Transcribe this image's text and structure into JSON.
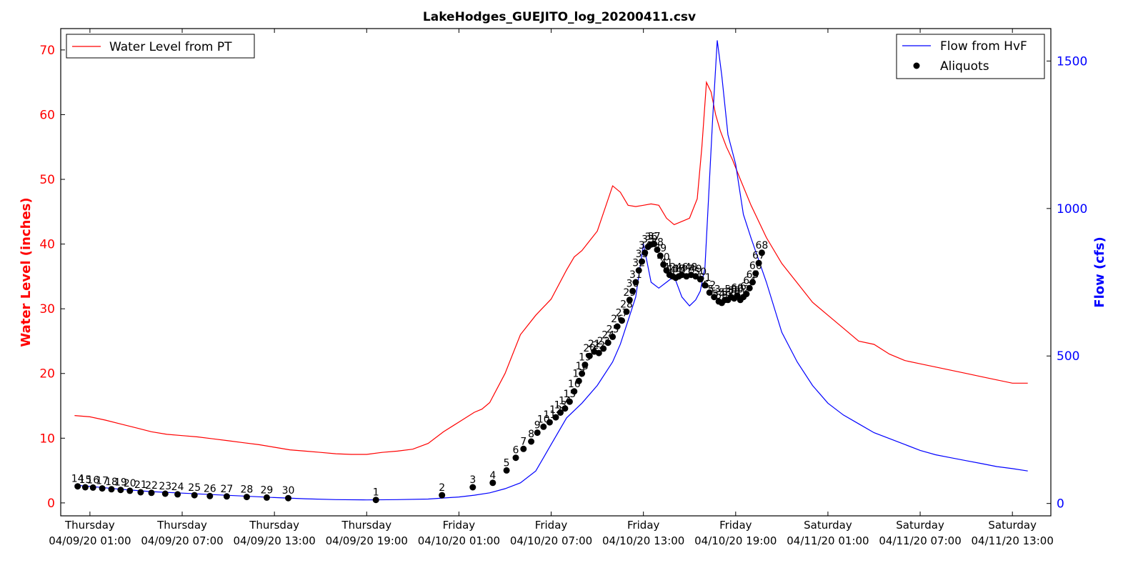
{
  "chart_data": {
    "type": "line",
    "title": "LakeHodges_GUEJITO_log_20200411.csv",
    "ylabel_left": "Water Level (inches)",
    "ylabel_right": "Flow (cfs)",
    "ylim_left": [
      -2,
      73.3
    ],
    "ylim_right": [
      -42,
      1610
    ],
    "yticks_left": [
      0,
      10,
      20,
      30,
      40,
      50,
      60,
      70
    ],
    "yticks_right": [
      0,
      500,
      1000,
      1500
    ],
    "xlim_hours": [
      -1.9,
      62.5
    ],
    "x_ticks": [
      {
        "hours": 0,
        "line1": "Thursday",
        "line2": "04/09/20 01:00"
      },
      {
        "hours": 6,
        "line1": "Thursday",
        "line2": "04/09/20 07:00"
      },
      {
        "hours": 12,
        "line1": "Thursday",
        "line2": "04/09/20 13:00"
      },
      {
        "hours": 18,
        "line1": "Thursday",
        "line2": "04/09/20 19:00"
      },
      {
        "hours": 24,
        "line1": "Friday",
        "line2": "04/10/20 01:00"
      },
      {
        "hours": 30,
        "line1": "Friday",
        "line2": "04/10/20 07:00"
      },
      {
        "hours": 36,
        "line1": "Friday",
        "line2": "04/10/20 13:00"
      },
      {
        "hours": 42,
        "line1": "Friday",
        "line2": "04/10/20 19:00"
      },
      {
        "hours": 48,
        "line1": "Saturday",
        "line2": "04/11/20 01:00"
      },
      {
        "hours": 54,
        "line1": "Saturday",
        "line2": "04/11/20 07:00"
      },
      {
        "hours": 60,
        "line1": "Saturday",
        "line2": "04/11/20 13:00"
      }
    ],
    "legend_left": {
      "position": "top-left",
      "entries": [
        {
          "name": "Water Level from PT",
          "color": "#ff0000"
        }
      ]
    },
    "legend_right": {
      "position": "top-right",
      "entries": [
        {
          "name": "Flow from HvF",
          "color": "#0000ff"
        },
        {
          "name": "Aliquots",
          "color": "#000000"
        }
      ]
    },
    "series": [
      {
        "name": "Water Level from PT",
        "axis": "left",
        "color": "#ff0000",
        "x": [
          -1,
          0,
          1,
          2,
          3,
          4,
          5,
          6,
          7,
          8,
          9,
          10,
          11,
          12,
          13,
          14,
          15,
          16,
          17,
          18,
          19,
          20,
          21,
          22,
          23,
          24,
          25,
          25.5,
          26,
          27,
          28,
          29,
          30,
          31,
          31.5,
          32,
          32.5,
          33,
          34,
          34.5,
          35,
          35.5,
          36,
          36.5,
          37,
          37.5,
          38,
          38.5,
          39,
          39.5,
          39.8,
          40.1,
          40.4,
          40.7,
          41,
          41.4,
          41.8,
          42.3,
          43,
          44,
          45,
          46,
          47,
          48,
          49,
          50,
          51,
          52,
          53,
          54,
          55,
          56,
          57,
          58,
          59,
          60,
          61
        ],
        "y": [
          13.5,
          13.3,
          12.8,
          12.2,
          11.6,
          11,
          10.6,
          10.4,
          10.2,
          9.9,
          9.6,
          9.3,
          9,
          8.6,
          8.2,
          8,
          7.8,
          7.6,
          7.5,
          7.5,
          7.8,
          8,
          8.3,
          9.2,
          11,
          12.5,
          14,
          14.5,
          15.5,
          20,
          26,
          29,
          31.5,
          36,
          38,
          39,
          40.5,
          42,
          49,
          48,
          46,
          45.8,
          46,
          46.2,
          46,
          44,
          43,
          43.5,
          44,
          47,
          55,
          65,
          63.5,
          60,
          57.5,
          55,
          53,
          50,
          46,
          41,
          37,
          34,
          31,
          29,
          27,
          25,
          24.5,
          23,
          22,
          21.5,
          21,
          20.5,
          20,
          19.5,
          19,
          18.5,
          18.5
        ]
      },
      {
        "name": "Flow from HvF",
        "axis": "right",
        "color": "#0000ff",
        "x": [
          -1,
          0,
          2,
          4,
          6,
          8,
          10,
          12,
          14,
          16,
          18,
          20,
          22,
          24,
          25,
          26,
          27,
          28,
          29,
          30,
          31,
          32,
          33,
          34,
          34.5,
          35,
          35.5,
          36,
          36.5,
          37,
          37.5,
          38,
          38.5,
          39,
          39.4,
          39.7,
          40,
          40.2,
          40.5,
          40.8,
          41.1,
          41.5,
          42,
          42.5,
          43,
          44,
          45,
          46,
          47,
          48,
          49,
          50,
          51,
          52,
          53,
          54,
          55,
          56,
          57,
          58,
          59,
          60,
          61
        ],
        "y": [
          62,
          58,
          48,
          40,
          35,
          30,
          25,
          20,
          16,
          13,
          12,
          13,
          15,
          22,
          28,
          36,
          50,
          70,
          110,
          200,
          290,
          340,
          400,
          480,
          540,
          620,
          700,
          880,
          750,
          730,
          750,
          770,
          700,
          670,
          690,
          720,
          800,
          1000,
          1300,
          1570,
          1450,
          1250,
          1150,
          980,
          900,
          750,
          580,
          480,
          400,
          340,
          300,
          270,
          240,
          220,
          200,
          180,
          165,
          155,
          145,
          135,
          125,
          118,
          110
        ]
      }
    ],
    "aliquots": [
      {
        "label": "14",
        "x": -0.8,
        "y": 58
      },
      {
        "label": "15",
        "x": -0.3,
        "y": 55
      },
      {
        "label": "16",
        "x": 0.2,
        "y": 54
      },
      {
        "label": "17",
        "x": 0.8,
        "y": 51
      },
      {
        "label": "18",
        "x": 1.4,
        "y": 48
      },
      {
        "label": "19",
        "x": 2,
        "y": 46
      },
      {
        "label": "20",
        "x": 2.6,
        "y": 43
      },
      {
        "label": "21",
        "x": 3.3,
        "y": 38
      },
      {
        "label": "22",
        "x": 4,
        "y": 36
      },
      {
        "label": "23",
        "x": 4.9,
        "y": 33
      },
      {
        "label": "24",
        "x": 5.7,
        "y": 31
      },
      {
        "label": "25",
        "x": 6.8,
        "y": 28
      },
      {
        "label": "26",
        "x": 7.8,
        "y": 25
      },
      {
        "label": "27",
        "x": 8.9,
        "y": 24
      },
      {
        "label": "28",
        "x": 10.2,
        "y": 22
      },
      {
        "label": "29",
        "x": 11.5,
        "y": 20
      },
      {
        "label": "30",
        "x": 12.9,
        "y": 18
      },
      {
        "label": "1",
        "x": 18.6,
        "y": 12
      },
      {
        "label": "2",
        "x": 22.9,
        "y": 28
      },
      {
        "label": "3",
        "x": 24.9,
        "y": 55
      },
      {
        "label": "4",
        "x": 26.2,
        "y": 70
      },
      {
        "label": "5",
        "x": 27.1,
        "y": 112
      },
      {
        "label": "6",
        "x": 27.7,
        "y": 155
      },
      {
        "label": "7",
        "x": 28.2,
        "y": 185
      },
      {
        "label": "8",
        "x": 28.7,
        "y": 210
      },
      {
        "label": "9",
        "x": 29.1,
        "y": 240
      },
      {
        "label": "10",
        "x": 29.5,
        "y": 260
      },
      {
        "label": "11",
        "x": 29.9,
        "y": 275
      },
      {
        "label": "12",
        "x": 30.3,
        "y": 292
      },
      {
        "label": "13",
        "x": 30.6,
        "y": 308
      },
      {
        "label": "14",
        "x": 30.9,
        "y": 322
      },
      {
        "label": "15",
        "x": 31.2,
        "y": 345
      },
      {
        "label": "16",
        "x": 31.5,
        "y": 380
      },
      {
        "label": "17",
        "x": 31.8,
        "y": 415
      },
      {
        "label": "18",
        "x": 32.0,
        "y": 440
      },
      {
        "label": "19",
        "x": 32.2,
        "y": 470
      },
      {
        "label": "20",
        "x": 32.5,
        "y": 500
      },
      {
        "label": "21",
        "x": 32.8,
        "y": 515
      },
      {
        "label": "22",
        "x": 33.1,
        "y": 510
      },
      {
        "label": "23",
        "x": 33.4,
        "y": 525
      },
      {
        "label": "24",
        "x": 33.7,
        "y": 545
      },
      {
        "label": "25",
        "x": 34.0,
        "y": 565
      },
      {
        "label": "26",
        "x": 34.3,
        "y": 600
      },
      {
        "label": "27",
        "x": 34.6,
        "y": 620
      },
      {
        "label": "28",
        "x": 34.9,
        "y": 650
      },
      {
        "label": "29",
        "x": 35.1,
        "y": 690
      },
      {
        "label": "30",
        "x": 35.3,
        "y": 720
      },
      {
        "label": "31",
        "x": 35.5,
        "y": 750
      },
      {
        "label": "32",
        "x": 35.7,
        "y": 790
      },
      {
        "label": "33",
        "x": 35.9,
        "y": 820
      },
      {
        "label": "34",
        "x": 36.1,
        "y": 850
      },
      {
        "label": "35",
        "x": 36.3,
        "y": 870
      },
      {
        "label": "36",
        "x": 36.5,
        "y": 878
      },
      {
        "label": "37",
        "x": 36.7,
        "y": 880
      },
      {
        "label": "38",
        "x": 36.9,
        "y": 860
      },
      {
        "label": "39",
        "x": 37.1,
        "y": 840
      },
      {
        "label": "40",
        "x": 37.3,
        "y": 810
      },
      {
        "label": "41",
        "x": 37.5,
        "y": 790
      },
      {
        "label": "42",
        "x": 37.7,
        "y": 775
      },
      {
        "label": "43",
        "x": 37.9,
        "y": 770
      },
      {
        "label": "44",
        "x": 38.1,
        "y": 765
      },
      {
        "label": "45",
        "x": 38.3,
        "y": 770
      },
      {
        "label": "46",
        "x": 38.5,
        "y": 775
      },
      {
        "label": "47",
        "x": 38.8,
        "y": 770
      },
      {
        "label": "48",
        "x": 39.1,
        "y": 775
      },
      {
        "label": "49",
        "x": 39.4,
        "y": 770
      },
      {
        "label": "50",
        "x": 39.7,
        "y": 760
      },
      {
        "label": "51",
        "x": 40.0,
        "y": 740
      },
      {
        "label": "52",
        "x": 40.3,
        "y": 715
      },
      {
        "label": "53",
        "x": 40.6,
        "y": 700
      },
      {
        "label": "54",
        "x": 40.9,
        "y": 685
      },
      {
        "label": "55",
        "x": 41.1,
        "y": 680
      },
      {
        "label": "56",
        "x": 41.3,
        "y": 690
      },
      {
        "label": "57",
        "x": 41.5,
        "y": 690
      },
      {
        "label": "58",
        "x": 41.7,
        "y": 700
      },
      {
        "label": "59",
        "x": 41.9,
        "y": 695
      },
      {
        "label": "60",
        "x": 42.1,
        "y": 705
      },
      {
        "label": "61",
        "x": 42.3,
        "y": 690
      },
      {
        "label": "62",
        "x": 42.5,
        "y": 700
      },
      {
        "label": "63",
        "x": 42.7,
        "y": 710
      },
      {
        "label": "64",
        "x": 42.9,
        "y": 730
      },
      {
        "label": "65",
        "x": 43.1,
        "y": 750
      },
      {
        "label": "66",
        "x": 43.3,
        "y": 780
      },
      {
        "label": "67",
        "x": 43.5,
        "y": 815
      },
      {
        "label": "68",
        "x": 43.7,
        "y": 850
      }
    ]
  }
}
